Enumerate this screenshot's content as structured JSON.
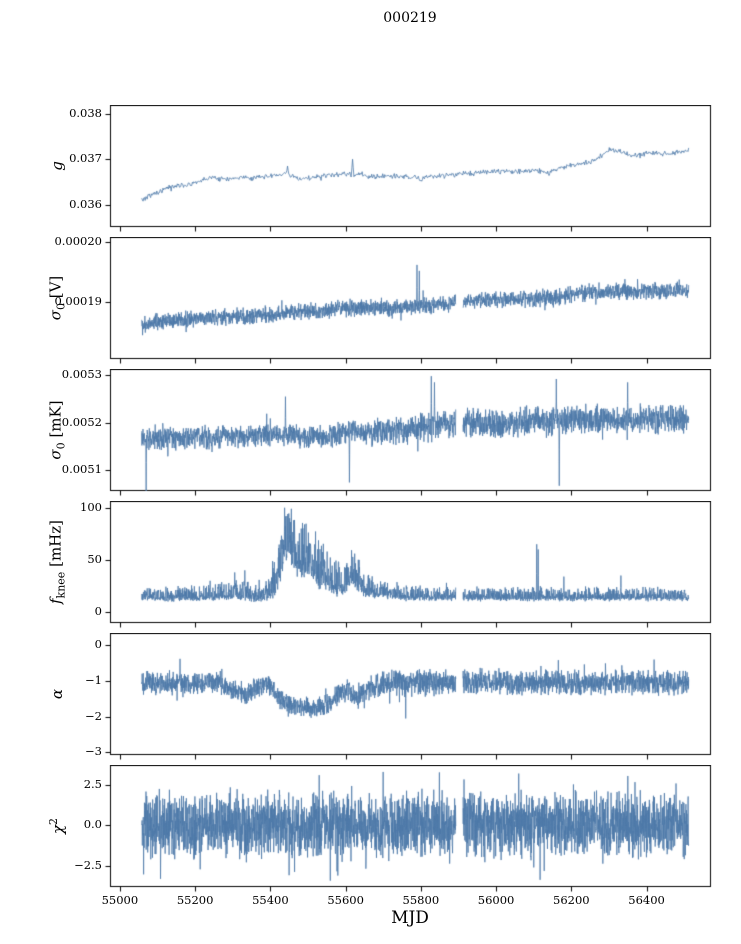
{
  "chart_data": {
    "type": "line",
    "title": "000219",
    "xlabel": "MJD",
    "line_color": "#4d79a8",
    "axis_color": "#000000",
    "background": "#ffffff",
    "legend": "none",
    "grid": false,
    "x_lim": [
      54975,
      56570
    ],
    "x_ticks": {
      "values": [
        55000,
        55200,
        55400,
        55600,
        55800,
        56000,
        56200,
        56400
      ],
      "labels": [
        "55000",
        "55200",
        "55400",
        "55600",
        "55800",
        "56000",
        "56200",
        "56400"
      ]
    },
    "data_x_range": [
      55058,
      56512
    ],
    "panels": [
      {
        "name": "g",
        "ylabel": {
          "text": "g",
          "base": "g",
          "italic": true,
          "sub": "",
          "sup": "",
          "unit": ""
        },
        "ylim": [
          0.03552,
          0.03818
        ],
        "y_ticks": {
          "values": [
            0.036,
            0.037,
            0.038
          ],
          "labels": [
            "0.036",
            "0.037",
            "0.038"
          ]
        },
        "noise_type": "sym",
        "noise_halfwidth": [
          [
            55058,
            5e-05
          ],
          [
            56512,
            5e-05
          ]
        ],
        "trend": [
          [
            55058,
            0.0361
          ],
          [
            55080,
            0.0362
          ],
          [
            55120,
            0.03635
          ],
          [
            55160,
            0.03642
          ],
          [
            55200,
            0.03648
          ],
          [
            55240,
            0.0366
          ],
          [
            55280,
            0.03655
          ],
          [
            55320,
            0.0366
          ],
          [
            55360,
            0.03658
          ],
          [
            55400,
            0.03662
          ],
          [
            55440,
            0.03668
          ],
          [
            55480,
            0.03655
          ],
          [
            55520,
            0.03662
          ],
          [
            55560,
            0.03664
          ],
          [
            55600,
            0.03667
          ],
          [
            55640,
            0.03664
          ],
          [
            55680,
            0.03662
          ],
          [
            55720,
            0.03663
          ],
          [
            55760,
            0.03662
          ],
          [
            55800,
            0.03656
          ],
          [
            55830,
            0.03664
          ],
          [
            55860,
            0.03663
          ],
          [
            55900,
            0.03668
          ],
          [
            55940,
            0.0367
          ],
          [
            55980,
            0.03672
          ],
          [
            56020,
            0.03674
          ],
          [
            56060,
            0.03673
          ],
          [
            56100,
            0.03675
          ],
          [
            56140,
            0.03672
          ],
          [
            56180,
            0.03684
          ],
          [
            56220,
            0.03688
          ],
          [
            56260,
            0.03695
          ],
          [
            56300,
            0.0372
          ],
          [
            56330,
            0.03718
          ],
          [
            56350,
            0.03708
          ],
          [
            56380,
            0.03708
          ],
          [
            56410,
            0.03715
          ],
          [
            56440,
            0.03712
          ],
          [
            56470,
            0.03713
          ],
          [
            56512,
            0.0372
          ]
        ],
        "spikes": [
          [
            55618,
            0.037
          ],
          [
            55445,
            0.03685
          ],
          [
            56140,
            0.03664
          ]
        ],
        "gap_x": [],
        "y_clamp": null
      },
      {
        "name": "sigma0_v",
        "ylabel": {
          "text": "σ0 [V]",
          "base": "σ",
          "italic": true,
          "sub": "0",
          "sup": "",
          "unit": "[V]"
        },
        "ylim": [
          0.0001805,
          0.0002008
        ],
        "y_ticks": {
          "values": [
            0.00019,
            0.0002
          ],
          "labels": [
            "0.00019",
            "0.00020"
          ]
        },
        "noise_type": "sym",
        "noise_halfwidth": [
          [
            55058,
            1.2e-06
          ],
          [
            56512,
            1.2e-06
          ]
        ],
        "trend": [
          [
            55058,
            0.0001862
          ],
          [
            55100,
            0.0001866
          ],
          [
            55150,
            0.0001869
          ],
          [
            55200,
            0.0001872
          ],
          [
            55250,
            0.0001875
          ],
          [
            55300,
            0.0001876
          ],
          [
            55350,
            0.0001875
          ],
          [
            55400,
            0.0001878
          ],
          [
            55450,
            0.0001881
          ],
          [
            55500,
            0.0001884
          ],
          [
            55550,
            0.0001886
          ],
          [
            55600,
            0.0001889
          ],
          [
            55650,
            0.000189
          ],
          [
            55700,
            0.0001889
          ],
          [
            55750,
            0.000189
          ],
          [
            55800,
            0.0001893
          ],
          [
            55850,
            0.0001896
          ],
          [
            55893,
            0.0001898
          ],
          [
            55911,
            0.0001901
          ],
          [
            55950,
            0.0001903
          ],
          [
            56000,
            0.0001904
          ],
          [
            56050,
            0.0001905
          ],
          [
            56100,
            0.0001904
          ],
          [
            56150,
            0.0001906
          ],
          [
            56200,
            0.0001912
          ],
          [
            56250,
            0.0001917
          ],
          [
            56300,
            0.0001918
          ],
          [
            56350,
            0.0001916
          ],
          [
            56400,
            0.0001919
          ],
          [
            56450,
            0.0001918
          ],
          [
            56512,
            0.0001919
          ]
        ],
        "spikes": [
          [
            55790,
            0.0001962
          ],
          [
            55796,
            0.0001952
          ],
          [
            56130,
            0.0001886
          ]
        ],
        "gap_x": [
          [
            55893,
            55912
          ]
        ],
        "y_clamp": null
      },
      {
        "name": "sigma0_mk",
        "ylabel": {
          "text": "σ0 [mK]",
          "base": "σ",
          "italic": true,
          "sub": "0",
          "sup": "",
          "unit": "[mK]"
        },
        "ylim": [
          0.005058,
          0.005312
        ],
        "y_ticks": {
          "values": [
            0.0051,
            0.0052,
            0.0053
          ],
          "labels": [
            "0.0051",
            "0.0052",
            "0.0053"
          ]
        },
        "noise_type": "sym",
        "noise_halfwidth": [
          [
            55058,
            2e-05
          ],
          [
            55600,
            2e-05
          ],
          [
            55800,
            2.6e-05
          ],
          [
            56512,
            2.6e-05
          ]
        ],
        "trend": [
          [
            55058,
            0.005168
          ],
          [
            55150,
            0.005168
          ],
          [
            55250,
            0.00517
          ],
          [
            55350,
            0.005172
          ],
          [
            55420,
            0.005178
          ],
          [
            55500,
            0.00517
          ],
          [
            55560,
            0.005172
          ],
          [
            55620,
            0.005185
          ],
          [
            55650,
            0.005178
          ],
          [
            55700,
            0.005185
          ],
          [
            55750,
            0.005182
          ],
          [
            55800,
            0.00519
          ],
          [
            55850,
            0.005195
          ],
          [
            55900,
            0.0052
          ],
          [
            55950,
            0.005198
          ],
          [
            56000,
            0.005198
          ],
          [
            56050,
            0.005202
          ],
          [
            56100,
            0.005205
          ],
          [
            56150,
            0.005204
          ],
          [
            56200,
            0.005206
          ],
          [
            56250,
            0.005207
          ],
          [
            56300,
            0.005206
          ],
          [
            56350,
            0.005208
          ],
          [
            56400,
            0.005207
          ],
          [
            56450,
            0.005206
          ],
          [
            56512,
            0.005208
          ]
        ],
        "spikes": [
          [
            55070,
            0.005055
          ],
          [
            55440,
            0.005255
          ],
          [
            55610,
            0.005075
          ],
          [
            55828,
            0.005298
          ],
          [
            55836,
            0.005285
          ],
          [
            56160,
            0.005292
          ],
          [
            56168,
            0.005068
          ],
          [
            56350,
            0.005285
          ]
        ],
        "gap_x": [
          [
            55893,
            55912
          ]
        ],
        "y_clamp": null
      },
      {
        "name": "fknee",
        "ylabel": {
          "text": "fknee [mHz]",
          "base": "f",
          "italic": true,
          "sub": "knee",
          "sup": "",
          "unit": "[mHz]"
        },
        "ylim": [
          -10,
          106
        ],
        "y_ticks": {
          "values": [
            0,
            50,
            100
          ],
          "labels": [
            "0",
            "50",
            "100"
          ]
        },
        "noise_type": "pos",
        "noise_halfwidth": [
          [
            55058,
            5
          ],
          [
            55260,
            6
          ],
          [
            55320,
            9
          ],
          [
            55390,
            7
          ],
          [
            55420,
            20
          ],
          [
            55440,
            26
          ],
          [
            55470,
            24
          ],
          [
            55510,
            20
          ],
          [
            55560,
            14
          ],
          [
            55600,
            12
          ],
          [
            55630,
            12
          ],
          [
            55660,
            9
          ],
          [
            55700,
            7
          ],
          [
            55760,
            6
          ],
          [
            55850,
            5
          ],
          [
            56512,
            5
          ]
        ],
        "trend": [
          [
            55058,
            14
          ],
          [
            55200,
            14
          ],
          [
            55280,
            16
          ],
          [
            55320,
            18
          ],
          [
            55360,
            15
          ],
          [
            55390,
            16
          ],
          [
            55410,
            22
          ],
          [
            55425,
            40
          ],
          [
            55440,
            62
          ],
          [
            55455,
            58
          ],
          [
            55470,
            52
          ],
          [
            55490,
            45
          ],
          [
            55510,
            40
          ],
          [
            55530,
            34
          ],
          [
            55555,
            28
          ],
          [
            55580,
            24
          ],
          [
            55600,
            26
          ],
          [
            55615,
            34
          ],
          [
            55630,
            30
          ],
          [
            55650,
            22
          ],
          [
            55680,
            19
          ],
          [
            55720,
            17
          ],
          [
            55760,
            15
          ],
          [
            55800,
            15
          ],
          [
            55850,
            14
          ],
          [
            55900,
            14
          ],
          [
            56000,
            14
          ],
          [
            56100,
            14
          ],
          [
            56200,
            14
          ],
          [
            56300,
            14
          ],
          [
            56400,
            14
          ],
          [
            56512,
            14
          ]
        ],
        "spikes": [
          [
            55438,
            100
          ],
          [
            55446,
            94
          ],
          [
            55462,
            88
          ],
          [
            55482,
            80
          ],
          [
            55305,
            38
          ],
          [
            55332,
            40
          ],
          [
            55240,
            30
          ],
          [
            55624,
            56
          ],
          [
            55636,
            50
          ],
          [
            55660,
            35
          ],
          [
            55868,
            28
          ],
          [
            56108,
            65
          ],
          [
            56112,
            60
          ],
          [
            56180,
            34
          ],
          [
            56332,
            35
          ]
        ],
        "gap_x": [
          [
            55893,
            55912
          ]
        ],
        "y_clamp": [
          4,
          102
        ]
      },
      {
        "name": "alpha",
        "ylabel": {
          "text": "α",
          "base": "α",
          "italic": true,
          "sub": "",
          "sup": "",
          "unit": ""
        },
        "ylim": [
          -3.06,
          0.33
        ],
        "y_ticks": {
          "values": [
            0,
            -1,
            -2,
            -3
          ],
          "labels": [
            "0",
            "−1",
            "−2",
            "−3"
          ]
        },
        "noise_type": "sym",
        "noise_halfwidth": [
          [
            55058,
            0.3
          ],
          [
            55420,
            0.25
          ],
          [
            55560,
            0.25
          ],
          [
            55650,
            0.3
          ],
          [
            56512,
            0.3
          ]
        ],
        "trend": [
          [
            55058,
            -1.05
          ],
          [
            55240,
            -1.05
          ],
          [
            55280,
            -1.1
          ],
          [
            55310,
            -1.3
          ],
          [
            55340,
            -1.35
          ],
          [
            55365,
            -1.15
          ],
          [
            55395,
            -1.1
          ],
          [
            55420,
            -1.45
          ],
          [
            55450,
            -1.65
          ],
          [
            55480,
            -1.72
          ],
          [
            55510,
            -1.75
          ],
          [
            55540,
            -1.72
          ],
          [
            55565,
            -1.55
          ],
          [
            55585,
            -1.35
          ],
          [
            55605,
            -1.25
          ],
          [
            55625,
            -1.45
          ],
          [
            55645,
            -1.35
          ],
          [
            55665,
            -1.15
          ],
          [
            55700,
            -1.08
          ],
          [
            55750,
            -1.05
          ],
          [
            55850,
            -1.05
          ],
          [
            56000,
            -1.03
          ],
          [
            56200,
            -1.05
          ],
          [
            56512,
            -1.05
          ]
        ],
        "spikes": [
          [
            55160,
            -0.38
          ],
          [
            55760,
            -2.05
          ],
          [
            56420,
            -0.4
          ]
        ],
        "gap_x": [
          [
            55893,
            55912
          ]
        ],
        "y_clamp": null
      },
      {
        "name": "chi2",
        "ylabel": {
          "text": "χ2",
          "base": "χ",
          "italic": true,
          "sub": "",
          "sup": "2",
          "unit": ""
        },
        "ylim": [
          -3.8,
          3.7
        ],
        "y_ticks": {
          "values": [
            2.5,
            0,
            -2.5
          ],
          "labels": [
            "2.5",
            "0.0",
            "−2.5"
          ]
        },
        "noise_type": "heavy",
        "noise_halfwidth": [
          [
            55058,
            1.5
          ],
          [
            56512,
            1.5
          ]
        ],
        "trend": [
          [
            55058,
            0
          ],
          [
            56512,
            0
          ]
        ],
        "spikes": [
          [
            55450,
            -3.1
          ],
          [
            55700,
            3.3
          ],
          [
            56060,
            3.2
          ],
          [
            56350,
            3.05
          ]
        ],
        "gap_x": [
          [
            55893,
            55912
          ]
        ],
        "y_clamp": [
          -3.55,
          3.45
        ]
      }
    ]
  }
}
